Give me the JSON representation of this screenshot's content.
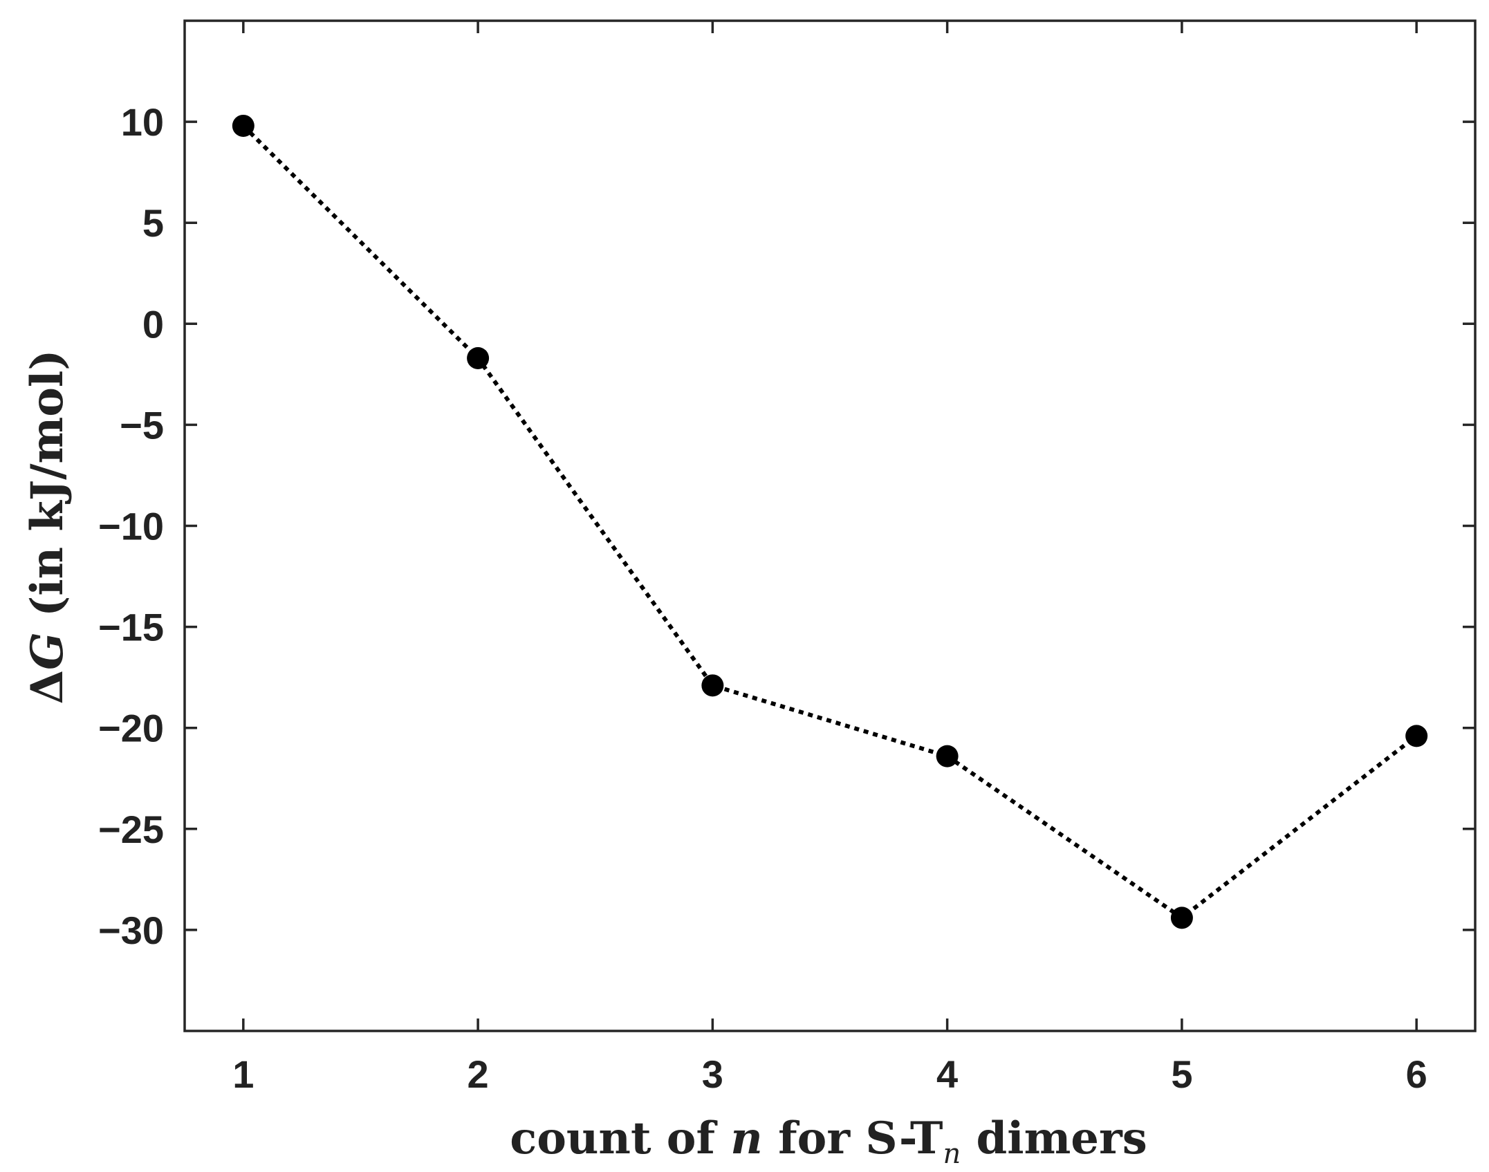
{
  "chart_data": {
    "type": "line",
    "title": "",
    "xlabel": {
      "prefix": "count of ",
      "var": "n",
      "middle": " for S-T",
      "subscript": "n",
      "suffix": " dimers"
    },
    "ylabel": {
      "symbol": "Δ",
      "var": "G",
      "suffix": " (in kJ/mol)"
    },
    "xlim": [
      0.75,
      6.25
    ],
    "ylim": [
      -35,
      15
    ],
    "xticks": [
      1,
      2,
      3,
      4,
      5,
      6
    ],
    "yticks": [
      10,
      5,
      0,
      -5,
      -10,
      -15,
      -20,
      -25,
      -30
    ],
    "ytick_labels": [
      "10",
      "5",
      "0",
      "−5",
      "−10",
      "−15",
      "−20",
      "−25",
      "−30"
    ],
    "grid": false,
    "series": [
      {
        "x": [
          1,
          2,
          3,
          4,
          5,
          6
        ],
        "values": [
          9.8,
          -1.7,
          -17.9,
          -21.4,
          -29.4,
          -20.4
        ],
        "line_style": "dotted",
        "marker": "filled-circle",
        "color": "#000000"
      }
    ]
  }
}
